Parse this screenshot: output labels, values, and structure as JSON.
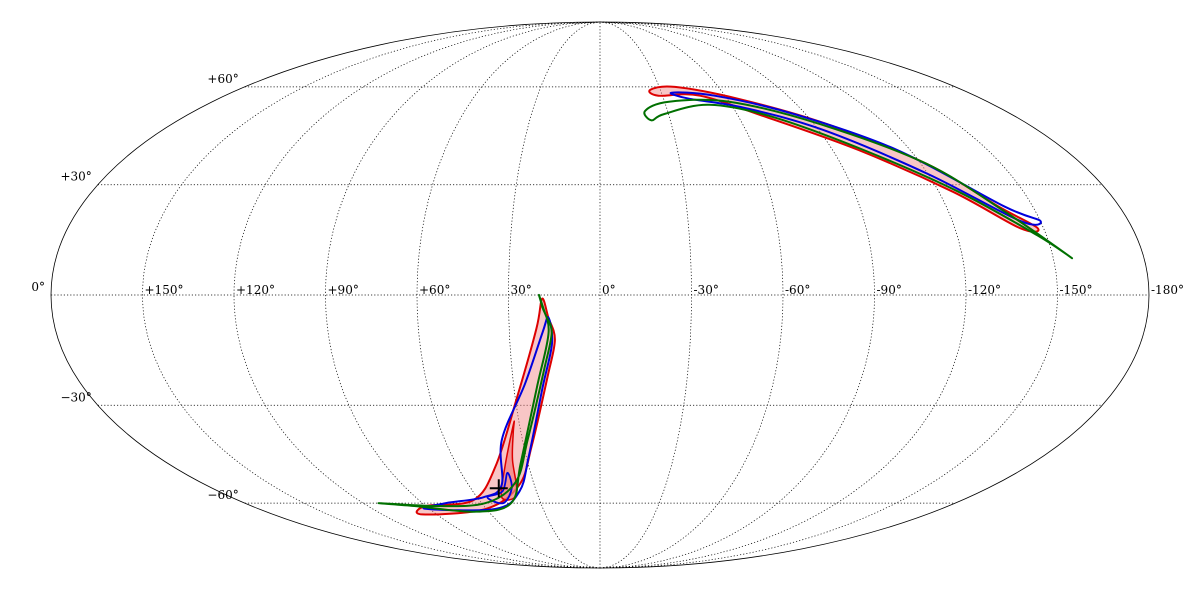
{
  "projection": "mollweide",
  "colors": {
    "grid": "#000000",
    "contour_red": "#dd0000",
    "contour_red_fill": "#f08080",
    "contour_blue": "#0000dd",
    "contour_green": "#007000",
    "marker": "#000000"
  },
  "latitude_labels": [
    {
      "lat": 60,
      "text": "+60°"
    },
    {
      "lat": 30,
      "text": "+30°"
    },
    {
      "lat": 0,
      "text": "0°"
    },
    {
      "lat": -30,
      "text": "−30°"
    },
    {
      "lat": -60,
      "text": "−60°"
    }
  ],
  "longitude_labels": [
    {
      "lon": 150,
      "text": "+150°"
    },
    {
      "lon": 120,
      "text": "+120°"
    },
    {
      "lon": 90,
      "text": "+90°"
    },
    {
      "lon": 60,
      "text": "+60°"
    },
    {
      "lon": 30,
      "text": "30°"
    },
    {
      "lon": 0,
      "text": "0°"
    },
    {
      "lon": -30,
      "text": "-30°"
    },
    {
      "lon": -60,
      "text": "-60°"
    },
    {
      "lon": -90,
      "text": "-90°"
    },
    {
      "lon": -120,
      "text": "-120°"
    },
    {
      "lon": -150,
      "text": "-150°"
    },
    {
      "lon": -180,
      "text": "-180°"
    }
  ],
  "marker": {
    "lon": 47,
    "lat": -55
  },
  "regions": [
    {
      "name": "south-arc",
      "green": [
        [
          20,
          0
        ],
        [
          18,
          -5
        ],
        [
          16,
          -10
        ],
        [
          19,
          -20
        ],
        [
          28,
          -40
        ],
        [
          38,
          -53
        ],
        [
          58,
          -60
        ],
        [
          85,
          -61
        ],
        [
          112,
          -60
        ],
        [
          96,
          -61
        ],
        [
          68,
          -63
        ],
        [
          45,
          -60
        ],
        [
          33,
          -47
        ],
        [
          22,
          -25
        ],
        [
          17,
          -10
        ],
        [
          19,
          -3
        ]
      ],
      "red": [
        [
          19,
          -1
        ],
        [
          17,
          -6
        ],
        [
          15,
          -12
        ],
        [
          18,
          -22
        ],
        [
          27,
          -42
        ],
        [
          37,
          -54
        ],
        [
          60,
          -62
        ],
        [
          98,
          -64
        ],
        [
          90,
          -61
        ],
        [
          63,
          -59
        ],
        [
          44,
          -48
        ],
        [
          30,
          -29
        ],
        [
          21,
          -9
        ]
      ],
      "red_inner": [
        [
          32,
          -35
        ],
        [
          40,
          -48
        ],
        [
          48,
          -58
        ],
        [
          40,
          -57
        ],
        [
          36,
          -46
        ],
        [
          33,
          -38
        ]
      ],
      "blue": [
        [
          17,
          -6
        ],
        [
          16,
          -13
        ],
        [
          20,
          -25
        ],
        [
          29,
          -45
        ],
        [
          38,
          -56
        ],
        [
          55,
          -62
        ],
        [
          92,
          -62
        ],
        [
          78,
          -60
        ],
        [
          57,
          -58
        ],
        [
          45,
          -54
        ],
        [
          38,
          -40
        ],
        [
          26,
          -24
        ],
        [
          19,
          -10
        ]
      ],
      "blue_inner": [
        [
          40,
          -50
        ],
        [
          46,
          -56
        ],
        [
          55,
          -58
        ],
        [
          49,
          -60
        ],
        [
          41,
          -55
        ]
      ]
    },
    {
      "name": "north-arc",
      "green": [
        [
          -20,
          52
        ],
        [
          -32,
          55
        ],
        [
          -60,
          55
        ],
        [
          -92,
          48
        ],
        [
          -122,
          36
        ],
        [
          -140,
          22
        ],
        [
          -156,
          10
        ],
        [
          -147,
          16
        ],
        [
          -127,
          28
        ],
        [
          -102,
          40
        ],
        [
          -75,
          50
        ],
        [
          -50,
          54
        ],
        [
          -28,
          51
        ],
        [
          -22,
          49
        ]
      ],
      "red": [
        [
          -25,
          59
        ],
        [
          -38,
          60
        ],
        [
          -65,
          56
        ],
        [
          -95,
          48
        ],
        [
          -122,
          36
        ],
        [
          -138,
          24
        ],
        [
          -148,
          18
        ],
        [
          -142,
          18
        ],
        [
          -125,
          28
        ],
        [
          -100,
          40
        ],
        [
          -72,
          50
        ],
        [
          -48,
          57
        ],
        [
          -28,
          57
        ]
      ],
      "blue": [
        [
          -35,
          58
        ],
        [
          -55,
          57
        ],
        [
          -85,
          51
        ],
        [
          -115,
          40
        ],
        [
          -140,
          24
        ],
        [
          -150,
          20
        ],
        [
          -143,
          20
        ],
        [
          -120,
          33
        ],
        [
          -92,
          46
        ],
        [
          -65,
          53
        ],
        [
          -42,
          56
        ]
      ]
    }
  ]
}
